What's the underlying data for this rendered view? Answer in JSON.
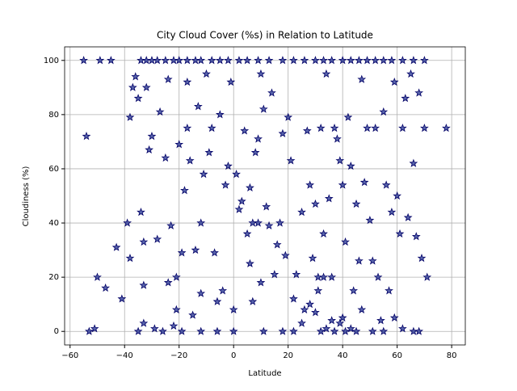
{
  "chart_data": {
    "type": "scatter",
    "title": "City Cloud Cover (%s) in Relation to Latitude",
    "x_label": "Latitude",
    "y_label": "Cloudiness (%)",
    "color": "#1f2d8f",
    "edge_color": "#000066",
    "grid": true,
    "xlim": [
      -62,
      85
    ],
    "ylim": [
      -5,
      105
    ],
    "xticks": [
      {
        "value": -60,
        "label": "−60"
      },
      {
        "value": -40,
        "label": "−40"
      },
      {
        "value": -20,
        "label": "−20"
      },
      0,
      20,
      40,
      60,
      80
    ],
    "yticks": [
      0,
      20,
      40,
      60,
      80,
      100
    ],
    "x": [
      -55,
      -49,
      -45,
      -34,
      -32,
      -30,
      -28,
      -25,
      -22,
      -20,
      -17,
      -14,
      -12,
      -8,
      -5,
      -2,
      2,
      5,
      9,
      13,
      18,
      22,
      26,
      30,
      33,
      36,
      40,
      43,
      46,
      49,
      52,
      55,
      58,
      62,
      66,
      70,
      -54,
      -50,
      -47,
      -43,
      -41,
      -39,
      -38,
      -38,
      -37,
      -36,
      -35,
      -34,
      -33,
      -33,
      -32,
      -31,
      -30,
      -28,
      -27,
      -25,
      -24,
      -24,
      -23,
      -21,
      -21,
      -20,
      -19,
      -18,
      -17,
      -17,
      -16,
      -15,
      -14,
      -13,
      -12,
      -12,
      -11,
      -10,
      -9,
      -8,
      -7,
      -6,
      -5,
      -4,
      -3,
      -2,
      -1,
      0,
      1,
      2,
      3,
      4,
      5,
      6,
      6,
      7,
      8,
      9,
      10,
      10,
      11,
      12,
      13,
      14,
      15,
      16,
      17,
      18,
      19,
      20,
      21,
      22,
      23,
      25,
      26,
      27,
      28,
      29,
      30,
      31,
      32,
      33,
      34,
      35,
      36,
      37,
      38,
      39,
      40,
      41,
      42,
      43,
      44,
      45,
      46,
      47,
      48,
      49,
      50,
      51,
      52,
      53,
      54,
      55,
      56,
      57,
      58,
      59,
      60,
      61,
      62,
      63,
      64,
      65,
      66,
      67,
      68,
      69,
      70,
      71,
      78,
      -53,
      -51,
      -35,
      -33,
      -29,
      -26,
      -22,
      -19,
      -12,
      -6,
      0,
      11,
      18,
      22,
      25,
      28,
      30,
      32,
      34,
      37,
      39,
      41,
      43,
      45,
      47,
      51,
      55,
      59,
      62,
      66,
      68,
      7,
      9,
      31,
      33,
      36,
      40
    ],
    "values": [
      100,
      100,
      100,
      100,
      100,
      100,
      100,
      100,
      100,
      100,
      100,
      100,
      100,
      100,
      100,
      100,
      100,
      100,
      100,
      100,
      100,
      100,
      100,
      100,
      100,
      100,
      100,
      100,
      100,
      100,
      100,
      100,
      100,
      100,
      100,
      100,
      72,
      20,
      16,
      31,
      12,
      40,
      27,
      79,
      90,
      94,
      86,
      44,
      33,
      17,
      90,
      67,
      72,
      34,
      81,
      64,
      18,
      93,
      39,
      8,
      20,
      69,
      29,
      52,
      75,
      92,
      63,
      6,
      30,
      83,
      40,
      14,
      58,
      95,
      66,
      75,
      29,
      11,
      80,
      15,
      54,
      61,
      92,
      8,
      58,
      45,
      48,
      74,
      36,
      53,
      25,
      11,
      66,
      71,
      95,
      18,
      82,
      46,
      39,
      88,
      21,
      32,
      40,
      73,
      28,
      79,
      63,
      12,
      21,
      44,
      8,
      74,
      54,
      27,
      47,
      15,
      75,
      36,
      95,
      49,
      4,
      75,
      71,
      63,
      54,
      33,
      79,
      61,
      15,
      47,
      26,
      93,
      55,
      75,
      41,
      26,
      75,
      20,
      4,
      81,
      54,
      15,
      44,
      92,
      50,
      36,
      75,
      86,
      42,
      95,
      62,
      35,
      88,
      27,
      75,
      20,
      75,
      0,
      1,
      0,
      3,
      1,
      0,
      2,
      0,
      0,
      0,
      0,
      0,
      0,
      0,
      3,
      10,
      7,
      0,
      1,
      0,
      3,
      0,
      1,
      0,
      8,
      0,
      0,
      5,
      1,
      0,
      0,
      40,
      40,
      20,
      20,
      20,
      5
    ]
  }
}
